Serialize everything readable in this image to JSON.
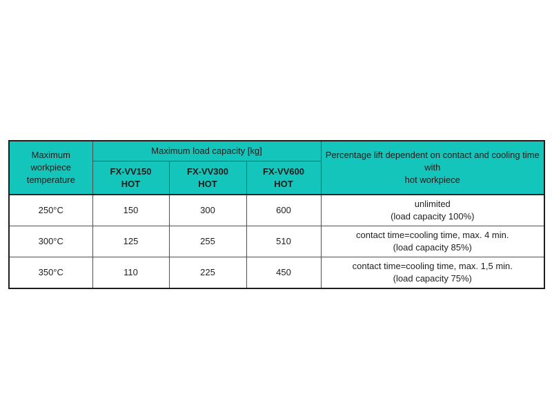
{
  "table": {
    "colors": {
      "header_bg": "#13c5bb",
      "border": "#1d1d1b",
      "text": "#1d1d1b"
    },
    "header": {
      "workpiece_line1": "Maximum workpiece",
      "workpiece_line2": "temperature",
      "load_capacity_group": "Maximum load capacity [kg]",
      "models": [
        {
          "name": "FX-VV150",
          "variant": "HOT"
        },
        {
          "name": "FX-VV300",
          "variant": "HOT"
        },
        {
          "name": "FX-VV600",
          "variant": "HOT"
        }
      ],
      "percentage_line1": "Percentage lift dependent on contact and cooling time with",
      "percentage_line2": "hot workpiece"
    },
    "rows": [
      {
        "temperature": "250°C",
        "fx150": "150",
        "fx300": "300",
        "fx600": "600",
        "note1": "unlimited",
        "note2": "(load capacity 100%)"
      },
      {
        "temperature": "300°C",
        "fx150": "125",
        "fx300": "255",
        "fx600": "510",
        "note1": "contact time=cooling time, max. 4 min.",
        "note2": "(load capacity 85%)"
      },
      {
        "temperature": "350°C",
        "fx150": "110",
        "fx300": "225",
        "fx600": "450",
        "note1": "contact time=cooling time, max. 1,5 min.",
        "note2": "(load capacity 75%)"
      }
    ]
  }
}
